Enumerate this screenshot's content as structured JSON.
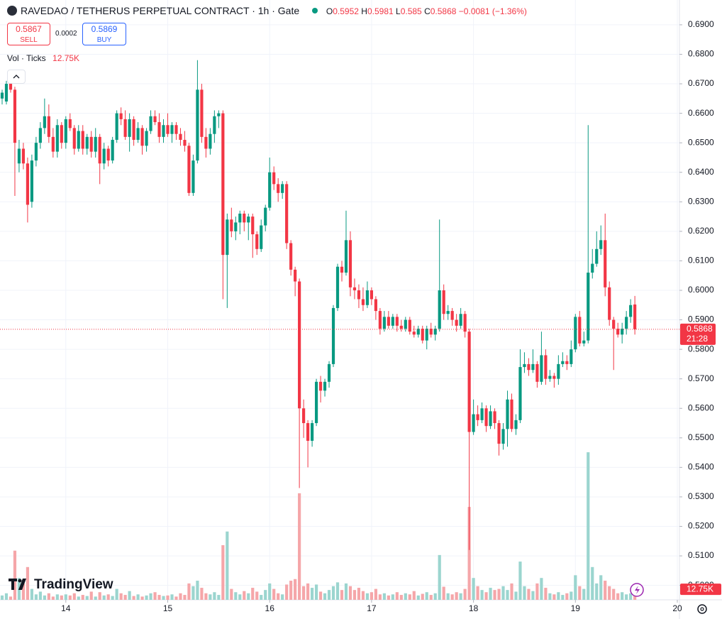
{
  "chart_data": {
    "type": "candlestick",
    "title": "RAVEDAO / TETHERUS PERPETUAL CONTRACT · 1h · Gate",
    "ohlc_labels": [
      "O",
      "H",
      "L",
      "C"
    ],
    "change_label": "−0.0081 (−1.36%)",
    "sell_price": "0.5867",
    "sell_label": "SELL",
    "spread": "0.0002",
    "buy_price": "0.5869",
    "buy_label": "BUY",
    "volume_legend": "Vol · Ticks",
    "volume_label": "12.75K",
    "countdown": "21:28",
    "logo_text": "TradingView",
    "up_color": "#089981",
    "down_color": "#f23645",
    "up_volume_color": "#9bd5cf",
    "down_volume_color": "#f5a6a9",
    "grid": true,
    "xlim": [
      -0.5,
      159.5
    ],
    "xticks": [
      {
        "value": 15,
        "label": "14"
      },
      {
        "value": 39,
        "label": "15"
      },
      {
        "value": 63,
        "label": "16"
      },
      {
        "value": 87,
        "label": "17"
      },
      {
        "value": 111,
        "label": "18"
      },
      {
        "value": 135,
        "label": "19"
      },
      {
        "value": 159,
        "label": "20"
      }
    ],
    "ylim": [
      0.4951,
      0.6984
    ],
    "yticks": [
      {
        "value": 0.5,
        "label": "0.5000"
      },
      {
        "value": 0.51,
        "label": "0.5100"
      },
      {
        "value": 0.52,
        "label": "0.5200"
      },
      {
        "value": 0.53,
        "label": "0.5300"
      },
      {
        "value": 0.54,
        "label": "0.5400"
      },
      {
        "value": 0.55,
        "label": "0.5500"
      },
      {
        "value": 0.56,
        "label": "0.5600"
      },
      {
        "value": 0.57,
        "label": "0.5700"
      },
      {
        "value": 0.58,
        "label": "0.5800"
      },
      {
        "value": 0.59,
        "label": "0.5900"
      },
      {
        "value": 0.6,
        "label": "0.6000"
      },
      {
        "value": 0.61,
        "label": "0.6100"
      },
      {
        "value": 0.62,
        "label": "0.6200"
      },
      {
        "value": 0.63,
        "label": "0.6300"
      },
      {
        "value": 0.64,
        "label": "0.6400"
      },
      {
        "value": 0.65,
        "label": "0.6500"
      },
      {
        "value": 0.66,
        "label": "0.6600"
      },
      {
        "value": 0.67,
        "label": "0.6700"
      },
      {
        "value": 0.68,
        "label": "0.6800"
      },
      {
        "value": 0.69,
        "label": "0.6900"
      }
    ],
    "volume_lim": [
      0,
      400000
    ],
    "candles": [
      [
        0.665,
        0.668,
        0.663,
        0.667
      ],
      [
        0.664,
        0.671,
        0.663,
        0.67
      ],
      [
        0.67,
        0.671,
        0.667,
        0.668
      ],
      [
        0.668,
        0.669,
        0.632,
        0.65
      ],
      [
        0.643,
        0.651,
        0.64,
        0.648
      ],
      [
        0.648,
        0.65,
        0.641,
        0.643
      ],
      [
        0.643,
        0.645,
        0.623,
        0.629
      ],
      [
        0.63,
        0.646,
        0.628,
        0.644
      ],
      [
        0.644,
        0.652,
        0.642,
        0.65
      ],
      [
        0.65,
        0.657,
        0.648,
        0.655
      ],
      [
        0.655,
        0.665,
        0.653,
        0.659
      ],
      [
        0.659,
        0.663,
        0.65,
        0.652
      ],
      [
        0.652,
        0.655,
        0.645,
        0.647
      ],
      [
        0.647,
        0.658,
        0.645,
        0.656
      ],
      [
        0.656,
        0.657,
        0.648,
        0.65
      ],
      [
        0.65,
        0.659,
        0.648,
        0.658
      ],
      [
        0.658,
        0.66,
        0.654,
        0.655
      ],
      [
        0.655,
        0.656,
        0.646,
        0.648
      ],
      [
        0.648,
        0.656,
        0.647,
        0.654
      ],
      [
        0.654,
        0.656,
        0.646,
        0.648
      ],
      [
        0.648,
        0.653,
        0.646,
        0.652
      ],
      [
        0.652,
        0.654,
        0.645,
        0.647
      ],
      [
        0.647,
        0.655,
        0.645,
        0.652
      ],
      [
        0.652,
        0.653,
        0.636,
        0.643
      ],
      [
        0.643,
        0.65,
        0.641,
        0.648
      ],
      [
        0.648,
        0.649,
        0.642,
        0.644
      ],
      [
        0.644,
        0.652,
        0.643,
        0.651
      ],
      [
        0.651,
        0.661,
        0.65,
        0.66
      ],
      [
        0.66,
        0.662,
        0.656,
        0.658
      ],
      [
        0.658,
        0.661,
        0.651,
        0.652
      ],
      [
        0.652,
        0.66,
        0.647,
        0.658
      ],
      [
        0.658,
        0.659,
        0.649,
        0.651
      ],
      [
        0.651,
        0.657,
        0.65,
        0.655
      ],
      [
        0.655,
        0.656,
        0.646,
        0.649
      ],
      [
        0.649,
        0.655,
        0.647,
        0.654
      ],
      [
        0.654,
        0.661,
        0.653,
        0.659
      ],
      [
        0.659,
        0.661,
        0.656,
        0.657
      ],
      [
        0.657,
        0.66,
        0.65,
        0.652
      ],
      [
        0.652,
        0.658,
        0.65,
        0.656
      ],
      [
        0.656,
        0.66,
        0.652,
        0.653
      ],
      [
        0.653,
        0.657,
        0.65,
        0.656
      ],
      [
        0.656,
        0.657,
        0.651,
        0.653
      ],
      [
        0.653,
        0.655,
        0.649,
        0.651
      ],
      [
        0.651,
        0.654,
        0.647,
        0.649
      ],
      [
        0.649,
        0.65,
        0.632,
        0.633
      ],
      [
        0.633,
        0.646,
        0.632,
        0.644
      ],
      [
        0.644,
        0.678,
        0.643,
        0.668
      ],
      [
        0.668,
        0.67,
        0.65,
        0.652
      ],
      [
        0.652,
        0.655,
        0.645,
        0.648
      ],
      [
        0.648,
        0.655,
        0.646,
        0.653
      ],
      [
        0.653,
        0.661,
        0.65,
        0.659
      ],
      [
        0.659,
        0.661,
        0.655,
        0.66
      ],
      [
        0.66,
        0.661,
        0.597,
        0.612
      ],
      [
        0.612,
        0.626,
        0.594,
        0.624
      ],
      [
        0.624,
        0.628,
        0.618,
        0.62
      ],
      [
        0.62,
        0.625,
        0.617,
        0.623
      ],
      [
        0.623,
        0.627,
        0.619,
        0.626
      ],
      [
        0.626,
        0.627,
        0.62,
        0.623
      ],
      [
        0.623,
        0.626,
        0.617,
        0.625
      ],
      [
        0.625,
        0.626,
        0.611,
        0.619
      ],
      [
        0.619,
        0.62,
        0.612,
        0.614
      ],
      [
        0.614,
        0.624,
        0.613,
        0.622
      ],
      [
        0.622,
        0.629,
        0.62,
        0.628
      ],
      [
        0.628,
        0.645,
        0.627,
        0.64
      ],
      [
        0.64,
        0.642,
        0.634,
        0.636
      ],
      [
        0.636,
        0.638,
        0.63,
        0.633
      ],
      [
        0.633,
        0.637,
        0.631,
        0.636
      ],
      [
        0.636,
        0.637,
        0.614,
        0.616
      ],
      [
        0.616,
        0.617,
        0.605,
        0.607
      ],
      [
        0.607,
        0.608,
        0.598,
        0.603
      ],
      [
        0.603,
        0.604,
        0.533,
        0.56
      ],
      [
        0.56,
        0.563,
        0.55,
        0.555
      ],
      [
        0.555,
        0.556,
        0.54,
        0.549
      ],
      [
        0.549,
        0.556,
        0.547,
        0.555
      ],
      [
        0.555,
        0.57,
        0.554,
        0.569
      ],
      [
        0.569,
        0.571,
        0.562,
        0.566
      ],
      [
        0.566,
        0.57,
        0.564,
        0.569
      ],
      [
        0.569,
        0.576,
        0.567,
        0.575
      ],
      [
        0.575,
        0.595,
        0.574,
        0.594
      ],
      [
        0.594,
        0.609,
        0.593,
        0.608
      ],
      [
        0.608,
        0.61,
        0.603,
        0.606
      ],
      [
        0.606,
        0.627,
        0.605,
        0.617
      ],
      [
        0.617,
        0.62,
        0.598,
        0.601
      ],
      [
        0.601,
        0.604,
        0.597,
        0.6
      ],
      [
        0.6,
        0.602,
        0.594,
        0.597
      ],
      [
        0.597,
        0.601,
        0.593,
        0.595
      ],
      [
        0.595,
        0.603,
        0.594,
        0.6
      ],
      [
        0.6,
        0.601,
        0.595,
        0.597
      ],
      [
        0.597,
        0.598,
        0.59,
        0.593
      ],
      [
        0.593,
        0.594,
        0.585,
        0.587
      ],
      [
        0.587,
        0.593,
        0.586,
        0.591
      ],
      [
        0.591,
        0.593,
        0.587,
        0.588
      ],
      [
        0.588,
        0.592,
        0.587,
        0.591
      ],
      [
        0.591,
        0.592,
        0.586,
        0.588
      ],
      [
        0.588,
        0.59,
        0.586,
        0.587
      ],
      [
        0.587,
        0.591,
        0.586,
        0.59
      ],
      [
        0.59,
        0.591,
        0.585,
        0.586
      ],
      [
        0.586,
        0.588,
        0.584,
        0.585
      ],
      [
        0.585,
        0.588,
        0.584,
        0.587
      ],
      [
        0.587,
        0.588,
        0.582,
        0.583
      ],
      [
        0.583,
        0.588,
        0.58,
        0.587
      ],
      [
        0.587,
        0.589,
        0.584,
        0.585
      ],
      [
        0.585,
        0.588,
        0.583,
        0.587
      ],
      [
        0.587,
        0.624,
        0.586,
        0.6
      ],
      [
        0.6,
        0.602,
        0.59,
        0.592
      ],
      [
        0.592,
        0.595,
        0.59,
        0.593
      ],
      [
        0.593,
        0.594,
        0.588,
        0.59
      ],
      [
        0.59,
        0.592,
        0.586,
        0.588
      ],
      [
        0.588,
        0.594,
        0.587,
        0.592
      ],
      [
        0.592,
        0.593,
        0.584,
        0.586
      ],
      [
        0.586,
        0.587,
        0.512,
        0.552
      ],
      [
        0.552,
        0.563,
        0.551,
        0.558
      ],
      [
        0.558,
        0.561,
        0.554,
        0.556
      ],
      [
        0.556,
        0.562,
        0.555,
        0.56
      ],
      [
        0.56,
        0.561,
        0.552,
        0.554
      ],
      [
        0.554,
        0.561,
        0.553,
        0.559
      ],
      [
        0.559,
        0.56,
        0.553,
        0.555
      ],
      [
        0.555,
        0.556,
        0.544,
        0.548
      ],
      [
        0.548,
        0.555,
        0.546,
        0.553
      ],
      [
        0.553,
        0.566,
        0.547,
        0.563
      ],
      [
        0.563,
        0.565,
        0.552,
        0.553
      ],
      [
        0.553,
        0.558,
        0.551,
        0.556
      ],
      [
        0.556,
        0.58,
        0.555,
        0.574
      ],
      [
        0.574,
        0.579,
        0.572,
        0.575
      ],
      [
        0.575,
        0.577,
        0.571,
        0.573
      ],
      [
        0.573,
        0.58,
        0.572,
        0.575
      ],
      [
        0.575,
        0.576,
        0.567,
        0.569
      ],
      [
        0.569,
        0.586,
        0.568,
        0.578
      ],
      [
        0.578,
        0.58,
        0.568,
        0.57
      ],
      [
        0.57,
        0.573,
        0.569,
        0.571
      ],
      [
        0.571,
        0.572,
        0.567,
        0.57
      ],
      [
        0.57,
        0.578,
        0.568,
        0.575
      ],
      [
        0.575,
        0.579,
        0.574,
        0.576
      ],
      [
        0.576,
        0.578,
        0.573,
        0.575
      ],
      [
        0.575,
        0.583,
        0.574,
        0.58
      ],
      [
        0.58,
        0.592,
        0.579,
        0.591
      ],
      [
        0.591,
        0.593,
        0.581,
        0.582
      ],
      [
        0.582,
        0.586,
        0.581,
        0.583
      ],
      [
        0.583,
        0.656,
        0.582,
        0.606
      ],
      [
        0.606,
        0.614,
        0.604,
        0.609
      ],
      [
        0.609,
        0.62,
        0.608,
        0.614
      ],
      [
        0.614,
        0.622,
        0.612,
        0.617
      ],
      [
        0.617,
        0.626,
        0.598,
        0.601
      ],
      [
        0.601,
        0.603,
        0.588,
        0.59
      ],
      [
        0.59,
        0.591,
        0.573,
        0.587
      ],
      [
        0.587,
        0.589,
        0.584,
        0.585
      ],
      [
        0.585,
        0.589,
        0.582,
        0.587
      ],
      [
        0.587,
        0.593,
        0.585,
        0.591
      ],
      [
        0.591,
        0.597,
        0.589,
        0.595
      ],
      [
        0.5952,
        0.5981,
        0.585,
        0.5868
      ]
    ],
    "volume": [
      8000,
      12000,
      6000,
      90000,
      40000,
      30000,
      60000,
      20000,
      10000,
      15000,
      8000,
      12000,
      6000,
      10000,
      8000,
      10000,
      8000,
      12000,
      6000,
      9000,
      7000,
      15000,
      6000,
      14000,
      8000,
      10000,
      7000,
      20000,
      12000,
      9000,
      16000,
      7000,
      10000,
      6000,
      8000,
      12000,
      14000,
      9000,
      7000,
      8000,
      10000,
      6000,
      12000,
      9000,
      30000,
      25000,
      35000,
      22000,
      12000,
      10000,
      14000,
      9000,
      100000,
      125000,
      20000,
      14000,
      10000,
      16000,
      12000,
      22000,
      15000,
      9000,
      18000,
      30000,
      20000,
      12000,
      10000,
      28000,
      35000,
      38000,
      195000,
      25000,
      30000,
      22000,
      28000,
      15000,
      12000,
      18000,
      25000,
      32000,
      18000,
      30000,
      25000,
      18000,
      22000,
      16000,
      12000,
      14000,
      20000,
      10000,
      12000,
      8000,
      10000,
      14000,
      9000,
      12000,
      10000,
      16000,
      8000,
      11000,
      14000,
      9000,
      12000,
      82000,
      24000,
      12000,
      10000,
      14000,
      12000,
      20000,
      170000,
      40000,
      25000,
      18000,
      14000,
      22000,
      18000,
      20000,
      25000,
      18000,
      30000,
      15000,
      70000,
      25000,
      20000,
      16000,
      30000,
      40000,
      22000,
      12000,
      10000,
      14000,
      9000,
      12000,
      15000,
      45000,
      25000,
      20000,
      270000,
      60000,
      30000,
      45000,
      35000,
      25000,
      20000,
      12000,
      14000,
      10000,
      12000,
      12750
    ]
  }
}
